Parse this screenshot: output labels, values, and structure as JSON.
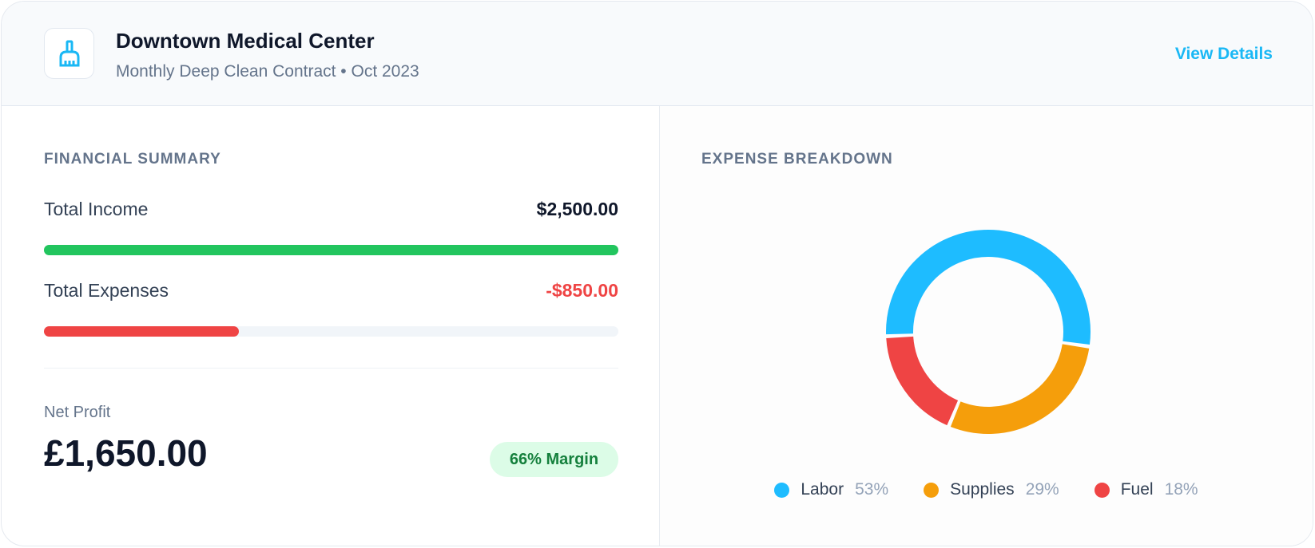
{
  "header": {
    "title": "Downtown Medical Center",
    "subtitle": "Monthly Deep Clean Contract • Oct 2023",
    "view_details": "View Details",
    "icon": "broom-icon"
  },
  "financial": {
    "heading": "FINANCIAL SUMMARY",
    "income": {
      "label": "Total Income",
      "value": "$2,500.00",
      "fill_pct": 100,
      "color": "#22c55e"
    },
    "expenses": {
      "label": "Total Expenses",
      "value": "-$850.00",
      "fill_pct": 34,
      "color": "#ef4444"
    },
    "net_profit": {
      "label": "Net Profit",
      "value": "£1,650.00",
      "badge": "66% Margin"
    }
  },
  "chart_data": {
    "type": "pie",
    "title": "EXPENSE BREAKDOWN",
    "variant": "donut",
    "legend": "bottom",
    "series": [
      {
        "name": "Labor",
        "value": 53,
        "label": "53%",
        "color": "#1ebcff"
      },
      {
        "name": "Supplies",
        "value": 29,
        "label": "29%",
        "color": "#f59e0b"
      },
      {
        "name": "Fuel",
        "value": 18,
        "label": "18%",
        "color": "#ef4444"
      }
    ]
  }
}
